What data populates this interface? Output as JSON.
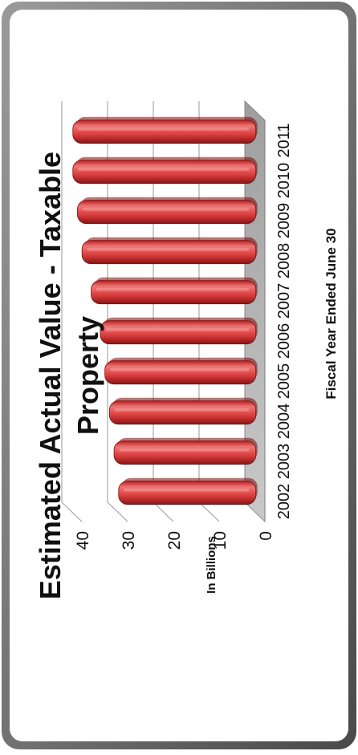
{
  "chart_data": {
    "type": "bar",
    "title": "Estimated Actual Value - Taxable Property",
    "title_lines": [
      "Estimated Actual Value - Taxable",
      "Property"
    ],
    "xlabel": "Fiscal Year Ended June 30",
    "ylabel": "In Billions",
    "categories": [
      "2002",
      "2003",
      "2004",
      "2005",
      "2006",
      "2007",
      "2008",
      "2009",
      "2010",
      "2011"
    ],
    "values": [
      30,
      31,
      32,
      33,
      34,
      36,
      38,
      39,
      40,
      40
    ],
    "ylim": [
      0,
      40
    ],
    "yticks": [
      0,
      10,
      20,
      30,
      40
    ],
    "grid": true,
    "legend": "none",
    "orientation": "rotated 90 degrees counter-clockwise",
    "bar_color": "#d42d2d",
    "floor_color": "#b7b7b7"
  }
}
